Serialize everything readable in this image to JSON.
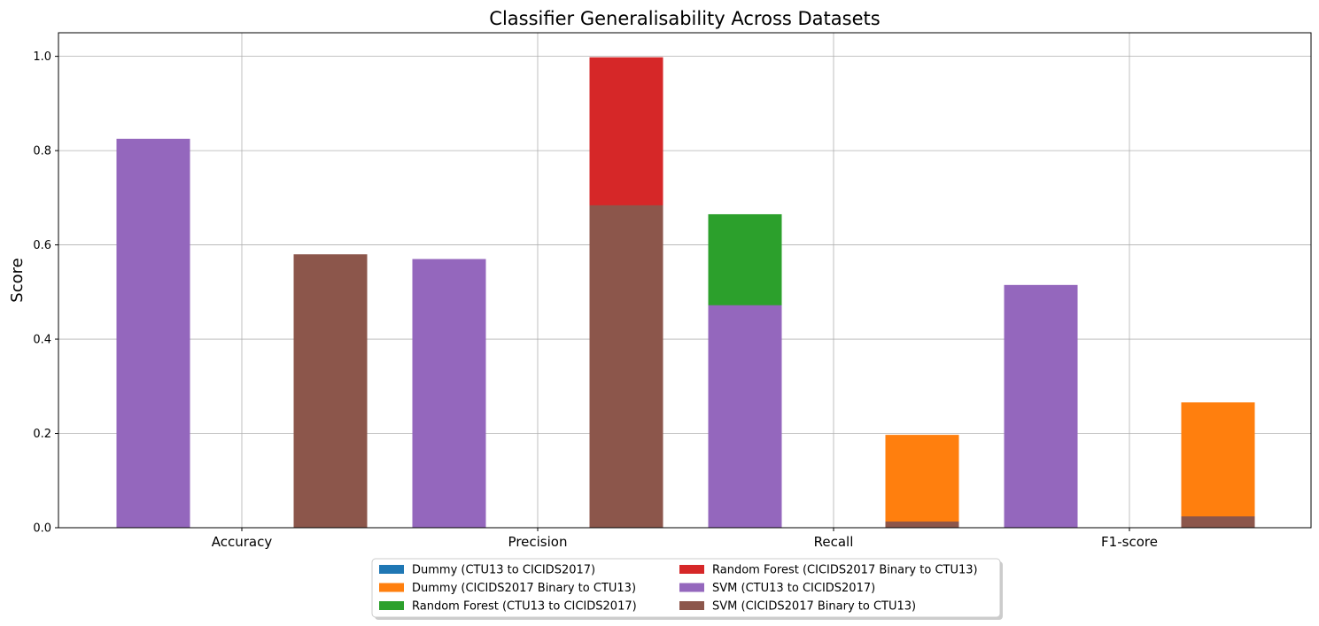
{
  "chart_data": {
    "type": "bar",
    "title": "Classifier Generalisability Across Datasets",
    "xlabel": "",
    "ylabel": "Score",
    "categories": [
      "Accuracy",
      "Precision",
      "Recall",
      "F1-score"
    ],
    "ylim": [
      0,
      1.05
    ],
    "yticks": [
      "0.0",
      "0.2",
      "0.4",
      "0.6",
      "0.8",
      "1.0"
    ],
    "grid": true,
    "legend_position": "bottom-center",
    "series": [
      {
        "name": "Dummy (CTU13 to CICIDS2017)",
        "color": "#1f77b4",
        "slot": 0,
        "values": [
          0.0,
          0.0,
          0.0,
          0.0
        ]
      },
      {
        "name": "Dummy (CICIDS2017 Binary to CTU13)",
        "color": "#ff7f0e",
        "slot": 1,
        "values": [
          0.0,
          0.0,
          0.197,
          0.266
        ]
      },
      {
        "name": "Random Forest (CTU13 to CICIDS2017)",
        "color": "#2ca02c",
        "slot": 0,
        "values": [
          0.0,
          0.0,
          0.665,
          0.0
        ]
      },
      {
        "name": "Random Forest (CICIDS2017 Binary to CTU13)",
        "color": "#d62728",
        "slot": 1,
        "values": [
          0.0,
          0.998,
          0.0,
          0.0
        ]
      },
      {
        "name": "SVM (CTU13 to CICIDS2017)",
        "color": "#9467bd",
        "slot": 0,
        "values": [
          0.825,
          0.57,
          0.472,
          0.515
        ]
      },
      {
        "name": "SVM (CICIDS2017 Binary to CTU13)",
        "color": "#8c564b",
        "slot": 1,
        "values": [
          0.58,
          0.684,
          0.013,
          0.024
        ]
      }
    ]
  }
}
